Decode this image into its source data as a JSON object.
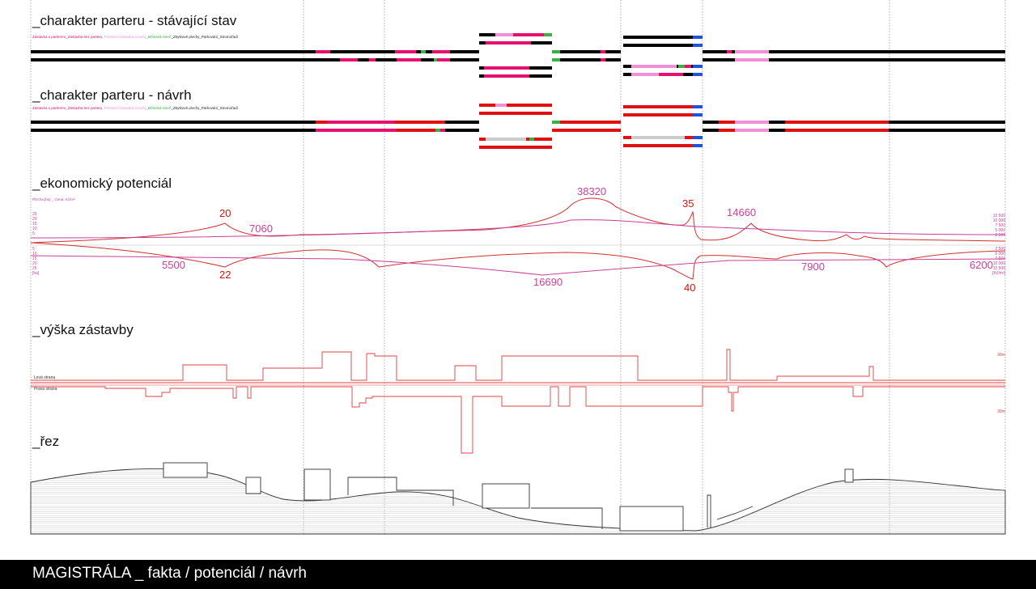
{
  "sections": {
    "current": {
      "title": "_charakter parteru - stávající stav",
      "legend": [
        {
          "text": "Zástavba s parterem",
          "color": "#e8106e"
        },
        {
          "text": "_Zástavba bez parteru",
          "color": "#c2185b"
        },
        {
          "text": "_Pozitivní zástavba (zeleň)",
          "color": "#f090d8"
        },
        {
          "text": "_Městská zeleň",
          "color": "#3cb043"
        },
        {
          "text": "_Zbytkové plochy_Parkování_Stromořadí",
          "color": "#222222"
        }
      ]
    },
    "proposal": {
      "title": "_charakter parteru - návrh",
      "legend": [
        {
          "text": "Zástavba s parterem",
          "color": "#e8106e"
        },
        {
          "text": "_Zástavba bez parteru",
          "color": "#c2185b"
        },
        {
          "text": "_Pozitivní zástavba (zeleň)",
          "color": "#f090d8"
        },
        {
          "text": "_Městská zeleň",
          "color": "#3cb043"
        },
        {
          "text": "_Zbytkové plochy_Parkování_Stromořadí",
          "color": "#222222"
        }
      ]
    },
    "economic": {
      "title": "_ekonomický potenciál",
      "legend": "Plocha [ha] _ Cena: Kč/m²",
      "left_ticks_top": [
        "25",
        "20",
        "15",
        "10",
        "5"
      ],
      "left_ticks_bottom": [
        "5",
        "10",
        "15",
        "20",
        "25"
      ],
      "left_unit": "[ha]",
      "right_ticks_top": [
        "12 500",
        "10 000",
        "7 500",
        "5 000",
        "2 500"
      ],
      "right_ticks_bottom": [
        "2 500",
        "5 000",
        "7 500",
        "10 000",
        "12 500"
      ],
      "right_unit": "[Kč/m²]",
      "labels": {
        "v38320": "38320",
        "v35": "35",
        "v20": "20",
        "v7060": "7060",
        "v14660": "14660",
        "v5500": "5500",
        "v22": "22",
        "v16690": "16690",
        "v40": "40",
        "v7900": "7900",
        "v6200": "6200"
      }
    },
    "height": {
      "title": "_výška zástavby",
      "left_label": "Levá strana",
      "right_label": "Pravá strana",
      "top_scale": "30m",
      "bottom_scale": "30m"
    },
    "section": {
      "title": "_řez"
    }
  },
  "colors": {
    "magenta": "#e8106e",
    "pink": "#f090d8",
    "red": "#e01010",
    "green": "#3cb043",
    "blue": "#1f55d8",
    "black": "#000000",
    "curve_red": "#d23030",
    "curve_magenta": "#c8409a"
  },
  "footer": {
    "title": "MAGISTRÁLA _ fakta / potenciál / návrh"
  }
}
